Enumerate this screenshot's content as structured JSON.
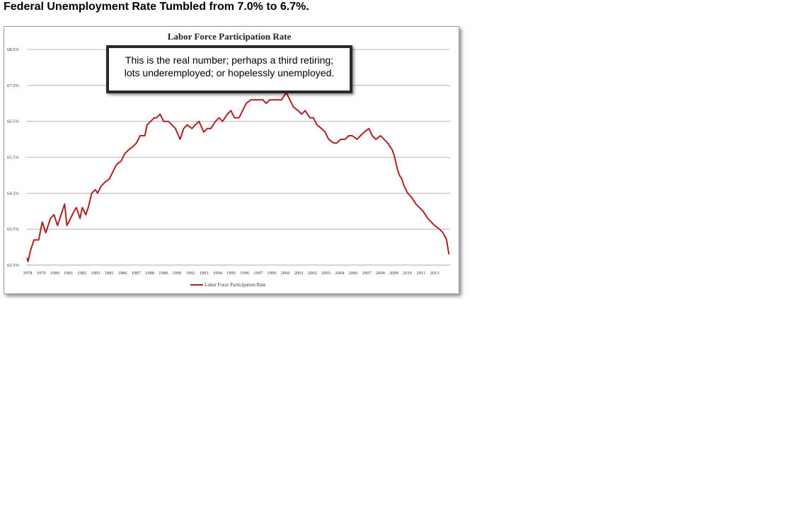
{
  "headline": "Federal Unemployment Rate Tumbled from 7.0% to 6.7%.",
  "callout": {
    "line1": "This is the real number; perhaps a third retiring;",
    "line2": "lots underemployed; or hopelessly unemployed."
  },
  "chart_data": {
    "type": "line",
    "title": "Labor Force Participation Rate",
    "xlabel": "",
    "ylabel": "",
    "ylim": [
      62.5,
      68.5
    ],
    "xlim": [
      1978,
      2013.9
    ],
    "grid": true,
    "legend_placement": "bottom-center",
    "y_ticks": [
      "68.5%",
      "67.5%",
      "66.5%",
      "65.5%",
      "64.5%",
      "63.5%",
      "62.5%"
    ],
    "y_tick_values": [
      68.5,
      67.5,
      66.5,
      65.5,
      64.5,
      63.5,
      62.5
    ],
    "x_ticks": [
      "1978",
      "1979",
      "1980",
      "1981",
      "1982",
      "1983",
      "1985",
      "1986",
      "1987",
      "1988",
      "1989",
      "1990",
      "1992",
      "1993",
      "1994",
      "1995",
      "1996",
      "1997",
      "1999",
      "2000",
      "2001",
      "2002",
      "2003",
      "2004",
      "2006",
      "2007",
      "2008",
      "2009",
      "2010",
      "2011",
      "2013"
    ],
    "series": [
      {
        "name": "Labor Force Participation Rate",
        "color": "#b21f1f",
        "x": [
          1978.0,
          1978.1,
          1978.3,
          1978.6,
          1979.0,
          1979.3,
          1979.6,
          1980.0,
          1980.3,
          1980.6,
          1981.0,
          1981.2,
          1981.4,
          1981.7,
          1982.0,
          1982.2,
          1982.5,
          1982.7,
          1983.0,
          1983.2,
          1983.5,
          1983.8,
          1984.0,
          1984.3,
          1984.6,
          1985.0,
          1985.3,
          1985.6,
          1986.0,
          1986.3,
          1986.6,
          1987.0,
          1987.3,
          1987.6,
          1988.0,
          1988.2,
          1988.5,
          1988.8,
          1989.0,
          1989.3,
          1989.6,
          1990.0,
          1990.3,
          1990.6,
          1991.0,
          1991.3,
          1991.6,
          1992.0,
          1992.3,
          1992.6,
          1993.0,
          1993.3,
          1993.6,
          1994.0,
          1994.3,
          1994.6,
          1995.0,
          1995.3,
          1995.6,
          1996.0,
          1996.3,
          1996.6,
          1997.0,
          1997.3,
          1997.6,
          1998.0,
          1998.3,
          1998.6,
          1999.0,
          1999.3,
          1999.6,
          2000.0,
          2000.3,
          2000.6,
          2001.0,
          2001.3,
          2001.6,
          2002.0,
          2002.3,
          2002.6,
          2003.0,
          2003.3,
          2003.6,
          2004.0,
          2004.3,
          2004.6,
          2005.0,
          2005.3,
          2005.6,
          2006.0,
          2006.3,
          2006.6,
          2007.0,
          2007.3,
          2007.6,
          2008.0,
          2008.3,
          2008.6,
          2009.0,
          2009.2,
          2009.4,
          2009.6,
          2009.8,
          2010.0,
          2010.3,
          2010.6,
          2011.0,
          2011.3,
          2011.6,
          2012.0,
          2012.3,
          2012.6,
          2013.0,
          2013.3,
          2013.6,
          2013.8
        ],
        "values": [
          62.7,
          62.6,
          62.9,
          63.2,
          63.2,
          63.7,
          63.4,
          63.8,
          63.9,
          63.6,
          64.0,
          64.2,
          63.6,
          63.8,
          64.0,
          64.1,
          63.8,
          64.1,
          63.9,
          64.1,
          64.5,
          64.6,
          64.5,
          64.7,
          64.8,
          64.9,
          65.1,
          65.3,
          65.4,
          65.6,
          65.7,
          65.8,
          65.9,
          66.1,
          66.1,
          66.4,
          66.5,
          66.6,
          66.6,
          66.7,
          66.5,
          66.5,
          66.4,
          66.3,
          66.0,
          66.3,
          66.4,
          66.3,
          66.4,
          66.5,
          66.2,
          66.3,
          66.3,
          66.5,
          66.6,
          66.5,
          66.7,
          66.8,
          66.6,
          66.6,
          66.8,
          67.0,
          67.1,
          67.1,
          67.1,
          67.1,
          67.0,
          67.1,
          67.1,
          67.1,
          67.1,
          67.3,
          67.1,
          66.9,
          66.8,
          66.7,
          66.8,
          66.6,
          66.6,
          66.4,
          66.3,
          66.2,
          66.0,
          65.9,
          65.9,
          66.0,
          66.0,
          66.1,
          66.1,
          66.0,
          66.1,
          66.2,
          66.3,
          66.1,
          66.0,
          66.1,
          66.0,
          65.9,
          65.7,
          65.5,
          65.2,
          65.0,
          64.9,
          64.7,
          64.5,
          64.4,
          64.2,
          64.1,
          64.0,
          63.8,
          63.7,
          63.6,
          63.5,
          63.4,
          63.2,
          62.8
        ]
      }
    ]
  }
}
